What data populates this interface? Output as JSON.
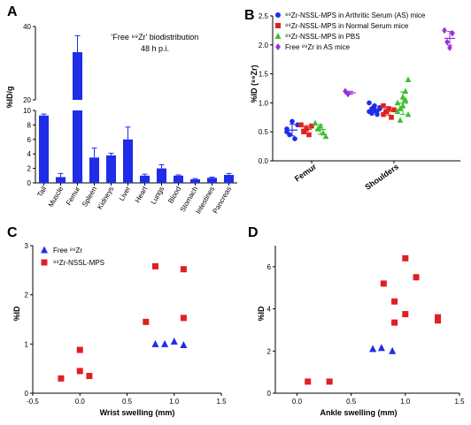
{
  "panels": {
    "A": "A",
    "B": "B",
    "C": "C",
    "D": "D"
  },
  "chart_data": [
    {
      "panel": "A",
      "type": "bar",
      "title_line1": "'Free ⁸⁹Zr' biodistribution",
      "title_line2": "48 h p.i.",
      "ylabel": "%ID/g",
      "categories": [
        "Tail",
        "Muscle",
        "Femur",
        "Spleen",
        "Kidneys",
        "Liver",
        "Heart",
        "Lungs",
        "Blood",
        "Stomach",
        "Intestines",
        "Pancreas"
      ],
      "values": [
        9.3,
        0.8,
        33.0,
        3.5,
        3.8,
        6.0,
        1.0,
        2.0,
        1.0,
        0.5,
        0.7,
        1.1
      ],
      "errors": [
        0.2,
        0.5,
        4.5,
        1.3,
        0.3,
        1.7,
        0.2,
        0.5,
        0.1,
        0.1,
        0.1,
        0.2
      ],
      "y_lower_ticks": [
        0,
        2,
        4,
        6,
        8,
        10
      ],
      "y_upper_ticks": [
        20,
        40
      ],
      "y_break": [
        10,
        20
      ],
      "color": "#1f2de8"
    },
    {
      "panel": "B",
      "type": "scatter",
      "ylabel": "%ID (⁸⁹Zr)",
      "categories": [
        "Femur",
        "Shoulders"
      ],
      "ylim": [
        0,
        2.5
      ],
      "y_ticks": [
        "0.0",
        "0.5",
        "1.0",
        "1.5",
        "2.0",
        "2.5"
      ],
      "series": [
        {
          "name": "⁸⁹Zr-NSSL-MPS in Arthritic Serum (AS) mice",
          "marker": "circle",
          "color": "#1f2de8",
          "groups": [
            [
              0.55,
              0.45,
              0.68,
              0.38,
              0.62,
              0.5
            ],
            [
              0.85,
              0.9,
              0.95,
              0.8,
              0.92,
              1.0,
              0.82,
              0.88,
              0.86,
              0.9
            ]
          ]
        },
        {
          "name": "⁸⁹Zr-NSSL-MPS in Normal Serum mice",
          "marker": "square",
          "color": "#e02020",
          "groups": [
            [
              0.62,
              0.5,
              0.55,
              0.45,
              0.6
            ],
            [
              0.95,
              0.85,
              0.9,
              0.75,
              0.88,
              0.8
            ]
          ]
        },
        {
          "name": "⁸⁹Zr-NSSL-MPS in PBS",
          "marker": "triangle",
          "color": "#3cbf2e",
          "groups": [
            [
              0.65,
              0.55,
              0.6,
              0.48,
              0.42
            ],
            [
              1.0,
              0.9,
              1.1,
              1.2,
              1.4,
              0.85,
              0.7,
              0.95,
              1.05,
              0.8
            ]
          ]
        },
        {
          "name": "Free ⁸⁹Zr in AS mice",
          "marker": "diamond",
          "color": "#9b30d9",
          "groups": [
            [
              1.2,
              1.15
            ],
            [
              2.25,
              2.05,
              1.95,
              2.2
            ]
          ]
        }
      ]
    },
    {
      "panel": "C",
      "type": "scatter",
      "xlabel": "Wrist swelling (mm)",
      "ylabel": "%ID",
      "xlim": [
        -0.5,
        1.5
      ],
      "ylim": [
        0,
        3
      ],
      "x_ticks": [
        "-0.5",
        "0.0",
        "0.5",
        "1.0",
        "1.5"
      ],
      "y_ticks": [
        "0",
        "1",
        "2",
        "3"
      ],
      "series": [
        {
          "name": "Free ⁸⁹Zr",
          "marker": "triangle",
          "color": "#1f2de8",
          "x": [
            0.8,
            0.9,
            1.0,
            1.1
          ],
          "y": [
            1.0,
            1.0,
            1.05,
            0.98
          ]
        },
        {
          "name": "⁸⁹Zr-NSSL-MPS",
          "marker": "square",
          "color": "#e02020",
          "x": [
            -0.2,
            0.0,
            0.0,
            0.1,
            0.7,
            0.8,
            1.1,
            1.1
          ],
          "y": [
            0.3,
            0.88,
            0.45,
            0.35,
            1.45,
            2.58,
            2.52,
            1.53
          ]
        }
      ]
    },
    {
      "panel": "D",
      "type": "scatter",
      "xlabel": "Ankle swelling (mm)",
      "ylabel": "%ID",
      "xlim": [
        -0.2,
        1.5
      ],
      "ylim": [
        0,
        7
      ],
      "x_ticks": [
        "0.0",
        "0.5",
        "1.0",
        "1.5"
      ],
      "x_tick_values": [
        0,
        0.5,
        1.0,
        1.5
      ],
      "y_ticks": [
        "0",
        "2",
        "4",
        "6"
      ],
      "series": [
        {
          "name": "Free ⁸⁹Zr",
          "marker": "triangle",
          "color": "#1f2de8",
          "x": [
            0.7,
            0.78,
            0.88
          ],
          "y": [
            2.1,
            2.15,
            2.0
          ]
        },
        {
          "name": "⁸⁹Zr-NSSL-MPS",
          "marker": "square",
          "color": "#e02020",
          "x": [
            0.1,
            0.3,
            0.8,
            0.9,
            1.0,
            1.0,
            1.1,
            0.9,
            1.3,
            1.3
          ],
          "y": [
            0.55,
            0.55,
            5.2,
            4.35,
            6.4,
            3.75,
            5.5,
            3.35,
            3.6,
            3.45
          ]
        }
      ]
    }
  ]
}
